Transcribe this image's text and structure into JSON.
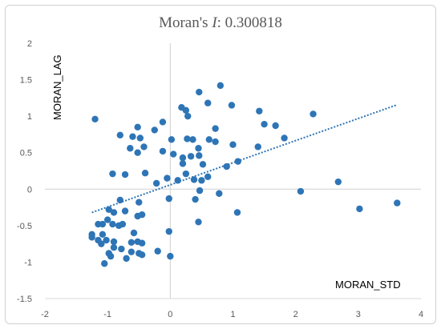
{
  "chart_data": {
    "type": "scatter",
    "title_prefix": "Moran's ",
    "title_stat": "I",
    "title_value": ": 0.300818",
    "xlabel": "MORAN_STD",
    "ylabel": "MORAN_LAG",
    "xlim": [
      -2,
      4
    ],
    "ylim": [
      -1.5,
      2
    ],
    "xticks": [
      "-2",
      "-1",
      "0",
      "1",
      "2",
      "3",
      "4"
    ],
    "yticks": [
      "-1.5",
      "-1",
      "-0.5",
      "0",
      "0.5",
      "1",
      "1.5",
      "2"
    ],
    "trendline": {
      "style": "dotted",
      "x": [
        -1.25,
        3.6
      ],
      "y": [
        -0.32,
        1.15
      ]
    },
    "marker_color": "#2e75b6",
    "trend_color": "#2e75b6",
    "grid": false,
    "points": [
      [
        -1.2,
        0.96
      ],
      [
        0.98,
        1.15
      ],
      [
        0.18,
        1.12
      ],
      [
        0.25,
        1.08
      ],
      [
        0.28,
        1.0
      ],
      [
        0.8,
        1.42
      ],
      [
        0.46,
        1.33
      ],
      [
        -0.52,
        0.85
      ],
      [
        -0.6,
        0.72
      ],
      [
        -0.48,
        0.7
      ],
      [
        -0.42,
        0.58
      ],
      [
        -0.25,
        0.81
      ],
      [
        -0.12,
        0.92
      ],
      [
        0.02,
        0.68
      ],
      [
        0.27,
        0.69
      ],
      [
        0.36,
        0.68
      ],
      [
        0.45,
        0.56
      ],
      [
        0.72,
        0.83
      ],
      [
        0.6,
        1.18
      ],
      [
        -0.8,
        0.74
      ],
      [
        -0.64,
        0.56
      ],
      [
        -0.52,
        0.5
      ],
      [
        -0.12,
        0.52
      ],
      [
        0.05,
        0.48
      ],
      [
        0.2,
        0.35
      ],
      [
        0.46,
        0.46
      ],
      [
        0.52,
        0.34
      ],
      [
        0.62,
        0.68
      ],
      [
        0.72,
        0.65
      ],
      [
        1.0,
        0.61
      ],
      [
        1.42,
        1.07
      ],
      [
        1.5,
        0.89
      ],
      [
        1.68,
        0.87
      ],
      [
        1.82,
        0.7
      ],
      [
        1.4,
        0.58
      ],
      [
        1.08,
        0.38
      ],
      [
        0.9,
        0.31
      ],
      [
        2.28,
        1.03
      ],
      [
        -0.92,
        0.21
      ],
      [
        -0.72,
        0.2
      ],
      [
        -0.4,
        0.22
      ],
      [
        -0.22,
        0.08
      ],
      [
        -0.05,
        0.15
      ],
      [
        0.12,
        0.12
      ],
      [
        0.25,
        0.21
      ],
      [
        0.38,
        0.13
      ],
      [
        0.5,
        0.12
      ],
      [
        0.6,
        0.17
      ],
      [
        0.2,
        0.43
      ],
      [
        0.33,
        0.45
      ],
      [
        0.78,
        -0.06
      ],
      [
        -0.02,
        -0.13
      ],
      [
        0.4,
        -0.14
      ],
      [
        0.47,
        -0.02
      ],
      [
        -0.5,
        -0.18
      ],
      [
        -0.8,
        -0.15
      ],
      [
        -0.9,
        -0.32
      ],
      [
        -0.98,
        -0.28
      ],
      [
        -1.0,
        -0.42
      ],
      [
        -1.15,
        -0.48
      ],
      [
        -1.25,
        -0.62
      ],
      [
        -1.25,
        -0.66
      ],
      [
        -1.08,
        -0.62
      ],
      [
        -1.02,
        -0.7
      ],
      [
        -0.9,
        -0.72
      ],
      [
        -0.82,
        -0.5
      ],
      [
        -0.76,
        -0.48
      ],
      [
        -0.72,
        -0.3
      ],
      [
        -0.52,
        -0.37
      ],
      [
        -0.45,
        -0.35
      ],
      [
        -0.58,
        -0.6
      ],
      [
        -0.52,
        -0.72
      ],
      [
        -0.45,
        -0.74
      ],
      [
        -0.62,
        -0.86
      ],
      [
        -0.7,
        -0.95
      ],
      [
        -0.78,
        -0.82
      ],
      [
        -0.9,
        -0.8
      ],
      [
        -0.98,
        -0.88
      ],
      [
        -1.1,
        -0.75
      ],
      [
        -1.15,
        -0.7
      ],
      [
        -1.05,
        -1.02
      ],
      [
        -0.95,
        -0.92
      ],
      [
        -0.5,
        -0.88
      ],
      [
        -0.45,
        -0.9
      ],
      [
        -0.2,
        -0.85
      ],
      [
        0.0,
        -0.92
      ],
      [
        -0.02,
        -0.58
      ],
      [
        0.45,
        -0.45
      ],
      [
        1.07,
        -0.32
      ],
      [
        2.08,
        -0.03
      ],
      [
        2.68,
        0.1
      ],
      [
        3.02,
        -0.27
      ],
      [
        3.62,
        -0.19
      ],
      [
        -1.08,
        -0.48
      ],
      [
        -0.92,
        -0.48
      ],
      [
        -0.62,
        -0.73
      ]
    ]
  }
}
